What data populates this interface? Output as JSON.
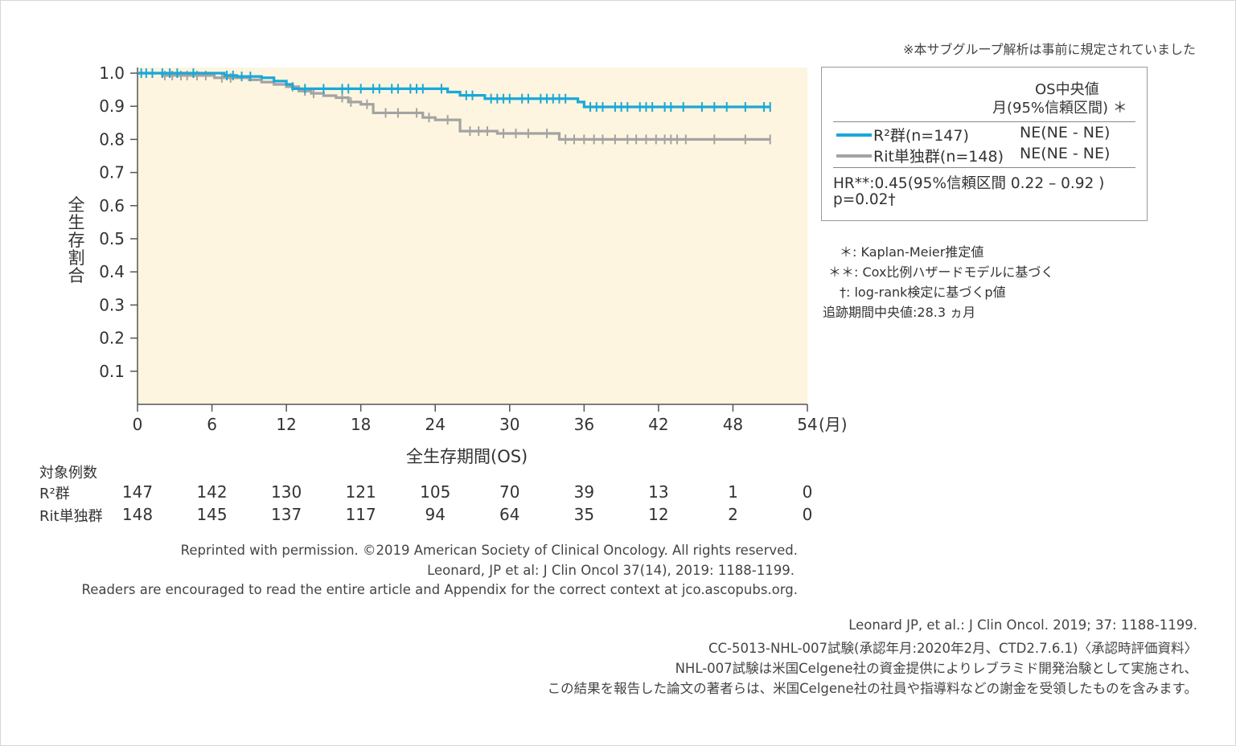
{
  "top_note": "※本サブグループ解析は事前に規定されていました",
  "colors": {
    "r2": "#1aa8d8",
    "rit": "#a3a3a3",
    "plot_bg": "#fdf5df",
    "axis": "#555555"
  },
  "chart_data": {
    "type": "line",
    "ylabel": "全生存割合",
    "xlabel": "全生存期間(OS)",
    "x_unit": "(月)",
    "xlim": [
      0,
      54
    ],
    "ylim": [
      0,
      1.0
    ],
    "x_ticks": [
      "0",
      "6",
      "12",
      "18",
      "24",
      "30",
      "36",
      "42",
      "48",
      "54"
    ],
    "y_ticks": [
      "1.0",
      "0.9",
      "0.8",
      "0.7",
      "0.6",
      "0.5",
      "0.4",
      "0.3",
      "0.2",
      "0.1"
    ],
    "series": [
      {
        "name": "R²群(n=147)",
        "step_x": [
          0,
          6,
          7,
          8,
          10,
          11,
          12,
          12.5,
          24,
          25,
          26,
          28,
          35,
          35.5,
          36,
          51
        ],
        "step_y": [
          1.0,
          1.0,
          0.993,
          0.99,
          0.986,
          0.976,
          0.966,
          0.953,
          0.953,
          0.943,
          0.933,
          0.923,
          0.923,
          0.913,
          0.898,
          0.898
        ],
        "censor_x": [
          0.3,
          0.7,
          1.2,
          2.0,
          2.6,
          3.2,
          4.5,
          7.2,
          7.7,
          8.4,
          9.1,
          13.5,
          15.0,
          16.5,
          17.0,
          18.0,
          19.0,
          19.5,
          20.5,
          21.0,
          22.0,
          22.5,
          23.0,
          24.5,
          26.5,
          27.0,
          28.5,
          29.0,
          29.5,
          30.0,
          31.0,
          31.5,
          32.5,
          33.0,
          33.5,
          34.0,
          34.5,
          36.5,
          37.0,
          37.5,
          38.5,
          39.0,
          39.5,
          40.5,
          41.0,
          41.5,
          42.5,
          43.0,
          44.0,
          45.5,
          46.5,
          47.5,
          49.0,
          50.5,
          51.0
        ]
      },
      {
        "name": "Rit単独群(n=148)",
        "step_x": [
          0,
          2,
          6.2,
          9,
          10,
          11,
          12,
          13,
          14,
          15,
          16,
          17,
          18,
          19,
          22,
          23,
          24,
          25,
          26,
          28,
          29,
          33,
          34,
          51
        ],
        "step_y": [
          1.0,
          0.993,
          0.986,
          0.98,
          0.973,
          0.966,
          0.959,
          0.946,
          0.939,
          0.932,
          0.926,
          0.913,
          0.906,
          0.88,
          0.88,
          0.866,
          0.859,
          0.859,
          0.825,
          0.825,
          0.818,
          0.818,
          0.8,
          0.8
        ],
        "censor_x": [
          2.2,
          2.8,
          3.5,
          4.0,
          4.8,
          5.5,
          6.8,
          7.5,
          12.5,
          13.5,
          14.2,
          16.5,
          17.2,
          18.5,
          20.0,
          21.0,
          22.5,
          23.5,
          25.0,
          26.8,
          27.5,
          28.2,
          29.5,
          30.5,
          31.5,
          33.0,
          34.5,
          35.2,
          36.0,
          36.8,
          37.5,
          38.5,
          39.5,
          40.2,
          41.0,
          41.8,
          42.5,
          43.0,
          43.5,
          44.2,
          46.5,
          49.0,
          51.0
        ]
      }
    ]
  },
  "at_risk": {
    "title": "対象例数",
    "rows": [
      {
        "label": "R²群",
        "values": [
          "147",
          "142",
          "130",
          "121",
          "105",
          "70",
          "39",
          "13",
          "1",
          "0"
        ]
      },
      {
        "label": "Rit単独群",
        "values": [
          "148",
          "145",
          "137",
          "117",
          "94",
          "64",
          "35",
          "12",
          "2",
          "0"
        ]
      }
    ]
  },
  "legend": {
    "header_line1": "OS中央値",
    "header_line2": "月(95%信頼区間) ＊",
    "rows": [
      {
        "label": "R²群(n=147)",
        "value": "NE(NE - NE)"
      },
      {
        "label": "Rit単独群(n=148)",
        "value": "NE(NE - NE)"
      }
    ],
    "hr_line": "HR**:0.45(95%信頼区間  0.22 – 0.92 )",
    "p_line": "p=0.02†"
  },
  "footnotes": [
    "＊: Kaplan-Meier推定値",
    "＊＊: Cox比例ハザードモデルに基づく",
    "†: log-rank検定に基づくp値",
    "追跡期間中央値:28.3 ヵ月"
  ],
  "reprint": [
    "Reprinted with permission. ©2019 American Society of Clinical Oncology. All rights reserved.",
    "Leonard, JP et al: J Clin Oncol 37(14), 2019: 1188-1199.",
    "Readers are encouraged to read the entire article and Appendix for the correct context at jco.ascopubs.org."
  ],
  "citations": [
    "Leonard JP, et al.: J Clin Oncol. 2019; 37: 1188-1199.",
    "CC-5013-NHL-007試験(承認年月:2020年2月、CTD2.7.6.1)〈承認時評価資料〉",
    "NHL-007試験は米国Celgene社の資金提供によりレブラミド開発治験として実施され、",
    "この結果を報告した論文の著者らは、米国Celgene社の社員や指導料などの謝金を受領したものを含みます。"
  ]
}
